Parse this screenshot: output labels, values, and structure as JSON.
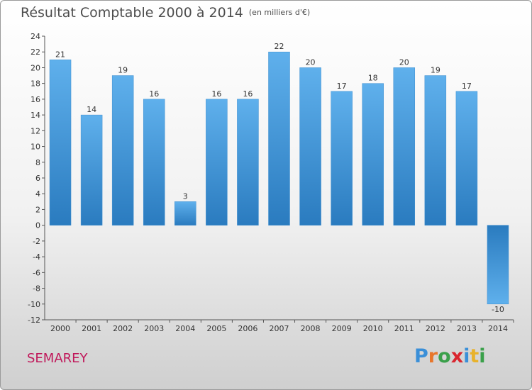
{
  "chart_data": {
    "type": "bar",
    "title": "Résultat Comptable 2000 à 2014",
    "subtitle": "(en milliers d'€)",
    "categories": [
      "2000",
      "2001",
      "2002",
      "2003",
      "2004",
      "2005",
      "2006",
      "2007",
      "2008",
      "2009",
      "2010",
      "2011",
      "2012",
      "2013",
      "2014"
    ],
    "values": [
      21,
      14,
      19,
      16,
      3,
      16,
      16,
      22,
      20,
      17,
      18,
      20,
      19,
      17,
      -10
    ],
    "ylim": [
      -12,
      24
    ],
    "yticks": [
      24,
      22,
      20,
      18,
      16,
      14,
      12,
      10,
      8,
      6,
      4,
      2,
      0,
      -2,
      -4,
      -6,
      -8,
      -10,
      -12
    ],
    "xlabel": "",
    "ylabel": "",
    "grid": false,
    "bar_color": "#4a9ddf"
  },
  "footer": {
    "commune": "SEMAREY",
    "logo": "Proxiti",
    "logo_letter_colors": [
      "#3a8fd8",
      "#e8762b",
      "#3aa04a",
      "#d9262f",
      "#3a8fd8",
      "#e8b22b",
      "#3aa04a"
    ]
  }
}
